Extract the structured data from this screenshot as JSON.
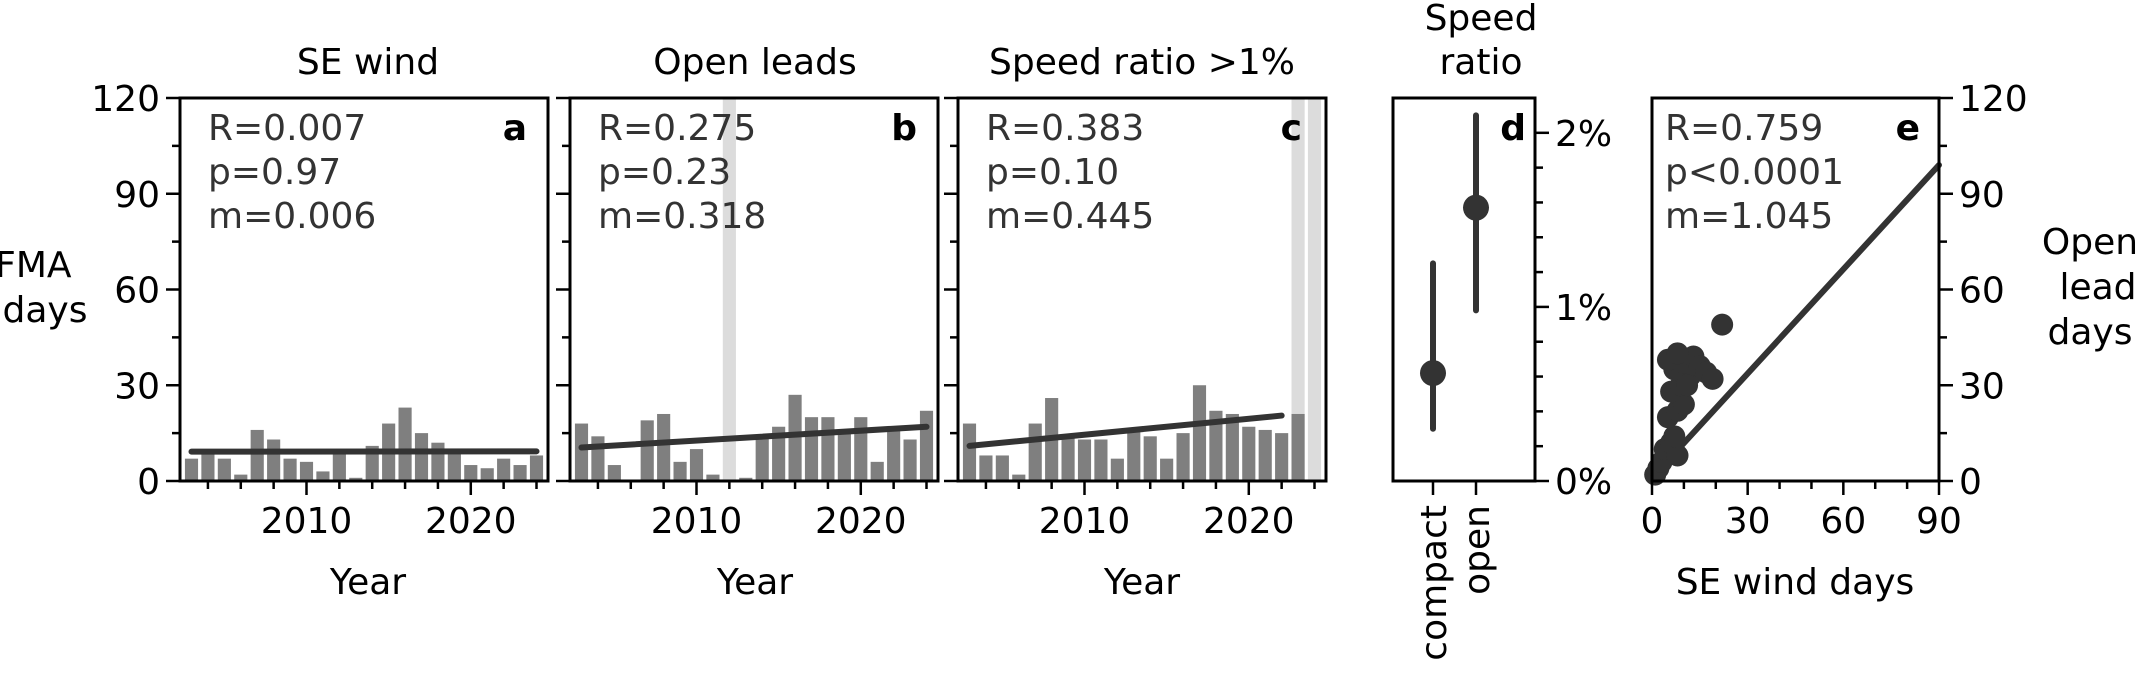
{
  "figure": {
    "ylabel_left": [
      "JFMA",
      "days"
    ],
    "ylabel_right": [
      "Open",
      "lead",
      "days"
    ]
  },
  "chart_data": [
    {
      "id": "a",
      "type": "bar",
      "title": "SE wind",
      "letter": "a",
      "xlabel": "Year",
      "ylim": [
        0,
        120
      ],
      "yticks": [
        0,
        30,
        60,
        90,
        120
      ],
      "xticks": [
        2010,
        2020
      ],
      "xlim": [
        2002.3,
        2024.7
      ],
      "years": [
        2003,
        2004,
        2005,
        2006,
        2007,
        2008,
        2009,
        2010,
        2011,
        2012,
        2013,
        2014,
        2015,
        2016,
        2017,
        2018,
        2019,
        2020,
        2021,
        2022,
        2023,
        2024
      ],
      "values": [
        7,
        9,
        7,
        2,
        16,
        13,
        7,
        6,
        3,
        9,
        1,
        11,
        18,
        23,
        15,
        12,
        9,
        5,
        4,
        7,
        5,
        8
      ],
      "trend": [
        9.2,
        9.3
      ],
      "stats": [
        "R=0.007",
        "p=0.97",
        "m=0.006"
      ]
    },
    {
      "id": "b",
      "type": "bar",
      "title": "Open leads",
      "letter": "b",
      "xlabel": "Year",
      "ylim": [
        0,
        120
      ],
      "yticks": [
        0,
        30,
        60,
        90,
        120
      ],
      "xticks": [
        2010,
        2020
      ],
      "xlim": [
        2002.3,
        2024.7
      ],
      "years": [
        2003,
        2004,
        2005,
        2006,
        2007,
        2008,
        2009,
        2010,
        2011,
        2012,
        2013,
        2014,
        2015,
        2016,
        2017,
        2018,
        2019,
        2020,
        2021,
        2022,
        2023,
        2024
      ],
      "values": [
        18,
        14,
        5,
        0,
        19,
        21,
        6,
        10,
        2,
        0,
        1,
        14,
        17,
        27,
        20,
        20,
        15,
        20,
        6,
        16,
        13,
        22
      ],
      "trend": [
        10.5,
        17
      ],
      "shaded_years": [
        2012
      ],
      "stats": [
        "R=0.275",
        "p=0.23",
        "m=0.318"
      ]
    },
    {
      "id": "c",
      "type": "bar",
      "title": "Speed ratio >1%",
      "letter": "c",
      "xlabel": "Year",
      "ylim": [
        0,
        120
      ],
      "yticks": [
        0,
        30,
        60,
        90,
        120
      ],
      "xticks": [
        2010,
        2020
      ],
      "xlim": [
        2002.3,
        2024.7
      ],
      "years": [
        2003,
        2004,
        2005,
        2006,
        2007,
        2008,
        2009,
        2010,
        2011,
        2012,
        2013,
        2014,
        2015,
        2016,
        2017,
        2018,
        2019,
        2020,
        2021,
        2022
      ],
      "values": [
        18,
        8,
        8,
        2,
        18,
        26,
        14,
        13,
        13,
        7,
        16,
        14,
        7,
        15,
        30,
        22,
        21,
        17,
        16,
        15
      ],
      "extra_bar": {
        "year": 2023,
        "value": 21
      },
      "trend": [
        11,
        20.5
      ],
      "shaded_years": [
        2023,
        2024
      ],
      "stats": [
        "R=0.383",
        "p=0.10",
        "m=0.445"
      ]
    },
    {
      "id": "d",
      "type": "scatter",
      "title": "Speed ratio",
      "title_lines": [
        "Speed",
        "ratio"
      ],
      "letter": "d",
      "categories": [
        "compact",
        "open"
      ],
      "ylim": [
        0,
        2.2
      ],
      "yticks": [
        "0%",
        "1%",
        "2%"
      ],
      "ytick_values": [
        0,
        1,
        2
      ],
      "means": [
        0.62,
        1.57
      ],
      "lower": [
        0.3,
        0.98
      ],
      "upper": [
        1.25,
        2.1
      ]
    },
    {
      "id": "e",
      "type": "scatter",
      "letter": "e",
      "xlabel": "SE wind days",
      "xlim": [
        0,
        90
      ],
      "ylim": [
        0,
        120
      ],
      "xticks": [
        0,
        30,
        60,
        90
      ],
      "yticks": [
        0,
        30,
        60,
        90,
        120
      ],
      "points": [
        [
          1,
          2
        ],
        [
          2,
          4
        ],
        [
          3,
          6
        ],
        [
          4,
          10
        ],
        [
          6,
          12
        ],
        [
          8,
          8
        ],
        [
          7,
          14
        ],
        [
          5,
          20
        ],
        [
          8,
          22
        ],
        [
          10,
          24
        ],
        [
          6,
          28
        ],
        [
          9,
          30
        ],
        [
          12,
          33
        ],
        [
          7,
          35
        ],
        [
          10,
          37
        ],
        [
          13,
          39
        ],
        [
          15,
          36
        ],
        [
          11,
          30
        ],
        [
          17,
          34
        ],
        [
          19,
          32
        ],
        [
          5,
          38
        ],
        [
          8,
          40
        ],
        [
          22,
          49
        ]
      ],
      "fit": {
        "x": [
          0,
          90
        ],
        "y": [
          1,
          99
        ]
      },
      "stats": [
        "R=0.759",
        "p<0.0001",
        "m=1.045"
      ]
    }
  ]
}
